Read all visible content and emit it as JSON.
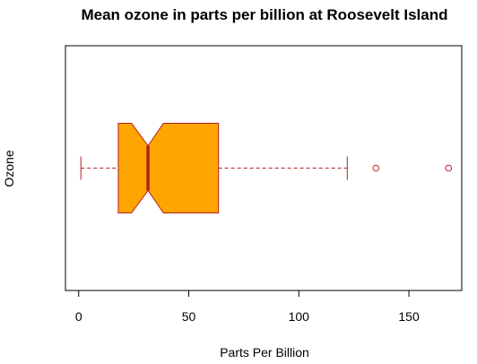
{
  "chart_data": {
    "type": "boxplot",
    "orientation": "horizontal",
    "notched": true,
    "title": "Mean ozone in parts per billion at Roosevelt Island",
    "xlabel": "Parts Per Billion",
    "ylabel": "Ozone",
    "xlim": [
      -6,
      174
    ],
    "xticks": [
      0,
      50,
      100,
      150
    ],
    "xtick_labels": [
      "0",
      "50",
      "100",
      "150"
    ],
    "box": {
      "whisker_low": 1,
      "q1": 18,
      "median": 31.5,
      "q3": 63.5,
      "whisker_high": 122,
      "notch_low": 24,
      "notch_high": 38.5,
      "outliers": [
        135,
        168
      ]
    },
    "colors": {
      "fill": "#FFA500",
      "border": "#B22222",
      "title": "#000000",
      "axis": "#000000"
    }
  }
}
